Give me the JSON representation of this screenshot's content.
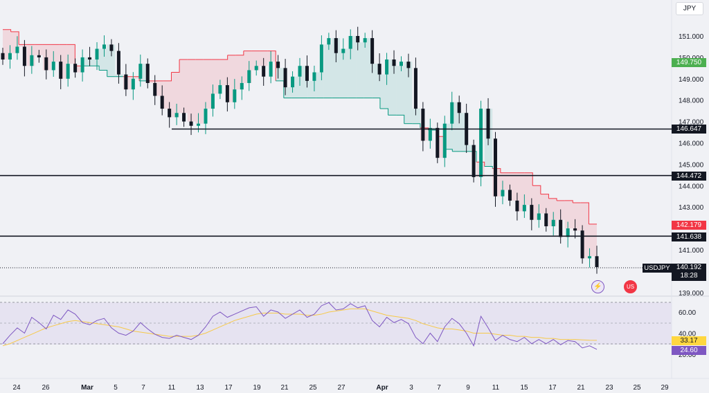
{
  "currency_label": "JPY",
  "symbol": "USDJPY",
  "price_axis": {
    "ticks": [
      "151.000",
      "150.000",
      "149.000",
      "148.000",
      "147.000",
      "146.000",
      "145.000",
      "144.000",
      "143.000",
      "141.000",
      "139.000"
    ]
  },
  "horizontal_levels": [
    {
      "label": "146.647",
      "value": 146.647
    },
    {
      "label": "144.472",
      "value": 144.472
    },
    {
      "label": "141.638",
      "value": 141.638
    }
  ],
  "price_tags": {
    "green_tag": "149.750",
    "red_tag": "142.179",
    "last_price": "140.192",
    "countdown": "18:28"
  },
  "rsi": {
    "ticks": [
      "60.00",
      "40.00",
      "20.00"
    ],
    "ma_value": "33.17",
    "rsi_value": "24.60",
    "upper_band": 70,
    "lower_band": 30
  },
  "x_axis": {
    "ticks": [
      "24",
      "26",
      "Mar",
      "5",
      "7",
      "11",
      "13",
      "17",
      "19",
      "21",
      "25",
      "27",
      "Apr",
      "3",
      "7",
      "9",
      "11",
      "15",
      "17",
      "21",
      "23",
      "25",
      "29"
    ]
  },
  "colors": {
    "up": "#089981",
    "down": "#131722",
    "stop_down": "#f23645",
    "stop_up": "#089981",
    "rsi_line": "#7e57c2",
    "rsi_ma": "#f7c948",
    "green_tag_bg": "#4caf50",
    "red_tag_bg": "#f23645",
    "rsi_tag_bg": "#7e57c2",
    "ma_tag_bg": "#ffd740"
  },
  "chart_data": {
    "type": "candlestick",
    "symbol": "USDJPY",
    "ylim": [
      139.0,
      151.6
    ],
    "rsi_ylim": [
      15,
      80
    ],
    "series_close": [
      149.9,
      150.2,
      150.5,
      149.6,
      150.1,
      150.0,
      149.4,
      149.8,
      149.0,
      149.7,
      149.3,
      150.0,
      149.9,
      150.4,
      150.6,
      150.3,
      149.2,
      148.5,
      149.0,
      149.7,
      148.8,
      148.2,
      147.6,
      147.2,
      147.4,
      147.0,
      146.8,
      146.9,
      147.6,
      148.3,
      148.7,
      147.9,
      148.5,
      148.8,
      149.4,
      149.6,
      149.1,
      149.8,
      149.5,
      148.6,
      149.1,
      149.6,
      148.9,
      149.3,
      150.6,
      150.9,
      150.2,
      150.4,
      151.0,
      150.7,
      150.9,
      149.7,
      149.2,
      149.9,
      149.6,
      149.8,
      149.5,
      147.6,
      146.1,
      146.7,
      145.3,
      146.9,
      147.9,
      147.4,
      145.9,
      144.4,
      147.6,
      146.2,
      143.5,
      143.8,
      143.3,
      142.8,
      143.1,
      142.4,
      142.7,
      142.1,
      142.4,
      141.6,
      142.0,
      141.9,
      140.6,
      140.7,
      140.19
    ],
    "series_stop": [
      151.3,
      151.2,
      150.6,
      150.6,
      150.6,
      150.6,
      150.6,
      150.6,
      150.6,
      149.6,
      149.6,
      149.6,
      149.4,
      149.1,
      149.1,
      149.1,
      149.1,
      148.9,
      148.9,
      148.9,
      148.9,
      149.3,
      149.9,
      149.9,
      149.9,
      149.9,
      149.9,
      149.9,
      150.1,
      150.1,
      150.3,
      150.3,
      150.3,
      150.3,
      148.9,
      148.1,
      148.1,
      148.1,
      148.1,
      148.1,
      148.1,
      148.1,
      148.1,
      148.1,
      148.1,
      148.1,
      148.1,
      147.6,
      147.3,
      147.3,
      146.9,
      146.9,
      146.7,
      146.6,
      146.3,
      145.7,
      145.6,
      145.6,
      145.6,
      145.1,
      144.9,
      144.8,
      144.6,
      144.6,
      144.6,
      144.6,
      144.0,
      143.6,
      143.4,
      143.3,
      143.3,
      143.2,
      143.2,
      142.2,
      142.2
    ],
    "series_rsi": [
      30,
      38,
      45,
      40,
      55,
      50,
      44,
      57,
      53,
      62,
      58,
      50,
      48,
      52,
      54,
      45,
      40,
      38,
      42,
      50,
      44,
      39,
      36,
      35,
      38,
      36,
      34,
      38,
      46,
      56,
      60,
      55,
      58,
      61,
      64,
      65,
      56,
      62,
      60,
      54,
      58,
      62,
      55,
      58,
      66,
      69,
      62,
      63,
      68,
      64,
      66,
      52,
      46,
      55,
      50,
      53,
      49,
      36,
      30,
      40,
      32,
      46,
      54,
      49,
      40,
      28,
      56,
      45,
      33,
      38,
      34,
      32,
      36,
      30,
      34,
      30,
      34,
      29,
      33,
      32,
      26,
      28,
      24.6
    ],
    "series_rsi_ma": [
      28,
      30,
      33,
      36,
      39,
      42,
      45,
      47,
      49,
      51,
      52,
      51,
      50,
      49,
      48,
      47,
      46,
      44,
      42,
      41,
      40,
      39,
      38,
      37,
      37,
      37,
      37,
      38,
      40,
      43,
      46,
      49,
      52,
      54,
      56,
      58,
      59,
      59,
      59,
      58,
      58,
      58,
      57,
      57,
      58,
      60,
      61,
      62,
      63,
      63,
      63,
      61,
      59,
      57,
      56,
      55,
      54,
      52,
      49,
      47,
      45,
      44,
      44,
      43,
      42,
      40,
      40,
      40,
      39,
      38,
      38,
      37,
      37,
      36,
      36,
      35,
      35,
      34,
      34,
      34,
      33.6,
      33.3,
      33.17
    ]
  }
}
